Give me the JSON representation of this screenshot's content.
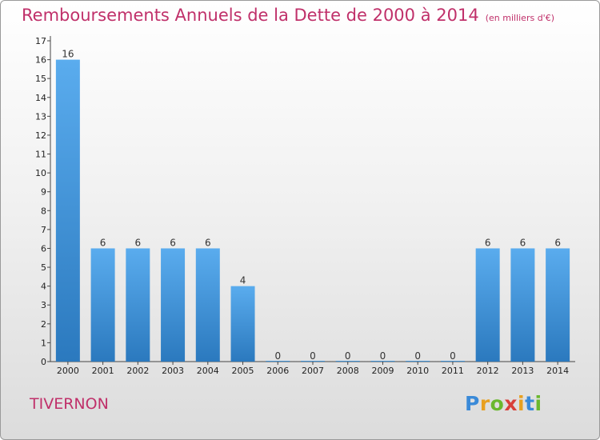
{
  "title": "Remboursements Annuels de la Dette de 2000 à 2014",
  "unit_note": "(en milliers d'€)",
  "commune": "TIVERNON",
  "logo": {
    "letters": [
      "P",
      "r",
      "o",
      "x",
      "i",
      "t",
      "i"
    ],
    "colors": [
      "#3a8ad8",
      "#e8a020",
      "#6ab82e",
      "#d8403a",
      "#e8a020",
      "#3a8ad8",
      "#6ab82e"
    ]
  },
  "colors": {
    "bar": "#4a9de0",
    "bar_dark": "#2b79be",
    "title": "#c0306a"
  },
  "chart_data": {
    "type": "bar",
    "categories": [
      "2000",
      "2001",
      "2002",
      "2003",
      "2004",
      "2005",
      "2006",
      "2007",
      "2008",
      "2009",
      "2010",
      "2011",
      "2012",
      "2013",
      "2014"
    ],
    "values": [
      16,
      6,
      6,
      6,
      6,
      4,
      0,
      0,
      0,
      0,
      0,
      0,
      6,
      6,
      6
    ],
    "title": "Remboursements Annuels de la Dette de 2000 à 2014",
    "ylim": [
      0,
      17
    ],
    "yticks": [
      0,
      1,
      2,
      3,
      4,
      5,
      6,
      7,
      8,
      9,
      10,
      11,
      12,
      13,
      14,
      15,
      16,
      17
    ],
    "grid": false,
    "data_labels": true
  }
}
